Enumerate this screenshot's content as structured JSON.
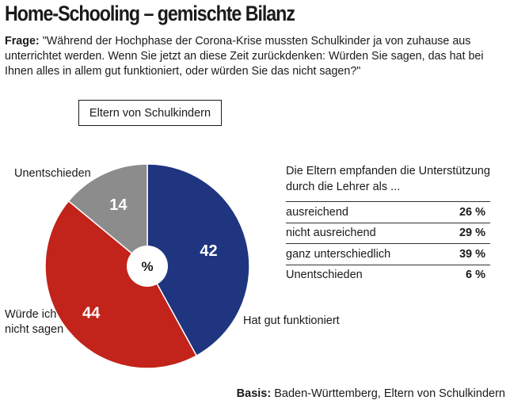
{
  "title": "Home-Schooling – gemischte Bilanz",
  "question_label": "Frage:",
  "question_text": "\"Während der Hochphase der Corona-Krise mussten Schulkinder ja von zuhause aus unterrichtet werden. Wenn Sie jetzt an diese Zeit zurückdenken: Würden Sie sagen, das hat bei Ihnen alles in allem gut funktioniert, oder würden Sie das nicht sagen?\"",
  "group_label": "Eltern von Schulkindern",
  "chart_data": [
    {
      "type": "pie",
      "unit_label": "%",
      "slices": [
        {
          "label": "Hat gut funktioniert",
          "value": 42,
          "color": "#1f3580"
        },
        {
          "label": "Würde ich nicht sagen",
          "value": 44,
          "color": "#c2231a"
        },
        {
          "label": "Unentschieden",
          "value": 14,
          "color": "#8c8c8c"
        }
      ]
    },
    {
      "type": "table",
      "title": "Die Eltern empfanden die Unterstützung durch die Lehrer als ...",
      "rows": [
        {
          "label": "ausreichend",
          "value": "26 %"
        },
        {
          "label": "nicht ausreichend",
          "value": "29 %"
        },
        {
          "label": "ganz unterschiedlich",
          "value": "39 %"
        },
        {
          "label": "Unentschieden",
          "value": "6 %"
        }
      ]
    }
  ],
  "source_label": "Basis:",
  "source_text": "Baden-Württemberg, Eltern von Schulkindern"
}
